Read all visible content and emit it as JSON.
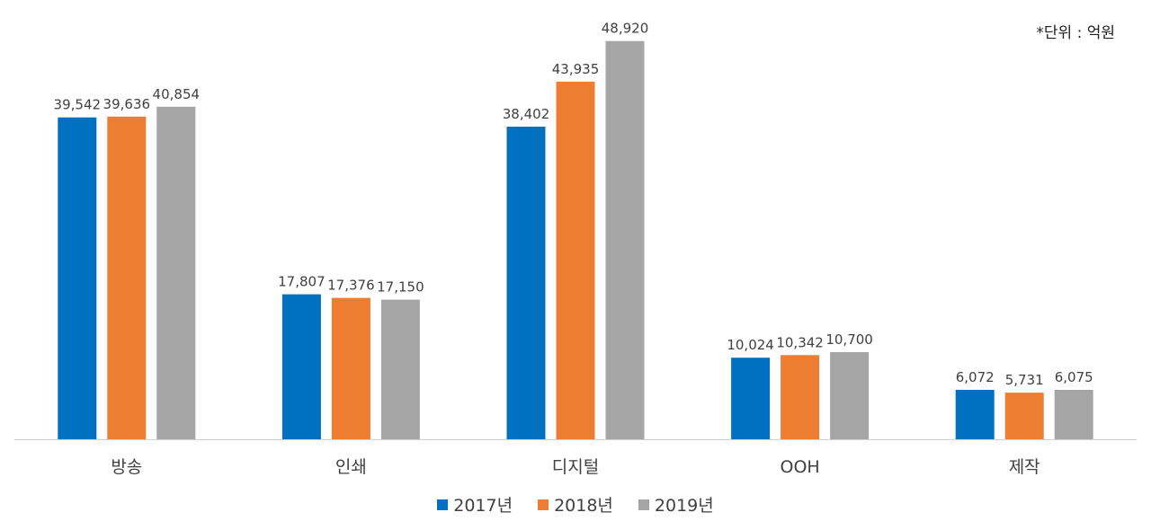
{
  "unit_note": "*단위 : 억원",
  "colors": {
    "2017년": "#0070C0",
    "2018년": "#ED7D31",
    "2019년": "#A5A5A5",
    "axis": "#D0D0D0",
    "label": "#404040",
    "category": "#404040"
  },
  "chart_data": {
    "type": "bar",
    "title": "",
    "xlabel": "",
    "ylabel": "",
    "ylim": [
      0,
      50000
    ],
    "grid": false,
    "legend_position": "bottom",
    "categories": [
      "방송",
      "인쇄",
      "디지털",
      "OOH",
      "제작"
    ],
    "series": [
      {
        "name": "2017년",
        "values": [
          39542,
          17807,
          38402,
          10024,
          6072
        ],
        "labels": [
          "39,542",
          "17,807",
          "38,402",
          "10,024",
          "6,072"
        ]
      },
      {
        "name": "2018년",
        "values": [
          39636,
          17376,
          43935,
          10342,
          5731
        ],
        "labels": [
          "39,636",
          "17,376",
          "43,935",
          "10,342",
          "5,731"
        ]
      },
      {
        "name": "2019년",
        "values": [
          40854,
          17150,
          48920,
          10700,
          6075
        ],
        "labels": [
          "40,854",
          "17,150",
          "48,920",
          "10,700",
          "6,075"
        ]
      }
    ]
  }
}
